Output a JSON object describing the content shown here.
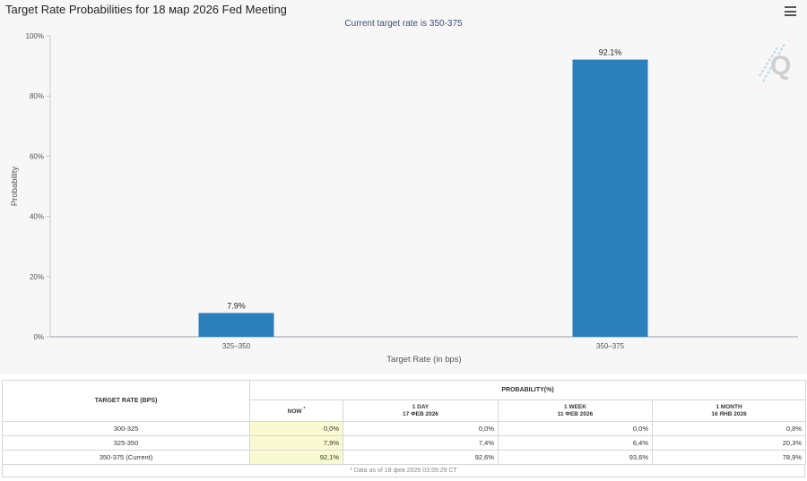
{
  "header": {
    "title": "Target Rate Probabilities for 18 мар 2026 Fed Meeting",
    "subtitle": "Current target rate is 350-375"
  },
  "colors": {
    "bar": "#2b80bb",
    "now_column": "#fafad0"
  },
  "icons": {
    "menu": "hamburger-menu-icon",
    "logo": "quikstrike-logo-icon"
  },
  "chart_data": {
    "type": "bar",
    "categories": [
      "325–350",
      "350–375"
    ],
    "values": [
      7.9,
      92.1
    ],
    "value_labels": [
      "7.9%",
      "92.1%"
    ],
    "title": "Target Rate Probabilities for 18 мар 2026 Fed Meeting",
    "subtitle": "Current target rate is 350-375",
    "xlabel": "Target Rate (in bps)",
    "ylabel": "Probability",
    "ylim": [
      0,
      100
    ],
    "yticks": [
      0,
      20,
      40,
      60,
      80,
      100
    ],
    "ytick_labels": [
      "0%",
      "20%",
      "40%",
      "60%",
      "80%",
      "100%"
    ],
    "grid": false,
    "legend": "none"
  },
  "table": {
    "rate_header": "TARGET RATE (BPS)",
    "probability_header": "PROBABILITY(%)",
    "columns": [
      {
        "line1": "NOW",
        "line2": "",
        "marker": "*"
      },
      {
        "line1": "1 DAY",
        "line2": "17 ФЕВ 2026",
        "marker": ""
      },
      {
        "line1": "1 WEEK",
        "line2": "11 ФЕВ 2026",
        "marker": ""
      },
      {
        "line1": "1 MONTH",
        "line2": "16 ЯНВ 2026",
        "marker": ""
      }
    ],
    "rows": [
      {
        "rate": "300-325",
        "values": [
          "0,0%",
          "0,0%",
          "0,0%",
          "0,8%"
        ]
      },
      {
        "rate": "325-350",
        "values": [
          "7,9%",
          "7,4%",
          "6,4%",
          "20,3%"
        ]
      },
      {
        "rate": "350-375 (Current)",
        "values": [
          "92,1%",
          "92,6%",
          "93,6%",
          "78,9%"
        ]
      }
    ],
    "footnote": "* Data as of 18 фев 2026 03:55:29 CT"
  }
}
